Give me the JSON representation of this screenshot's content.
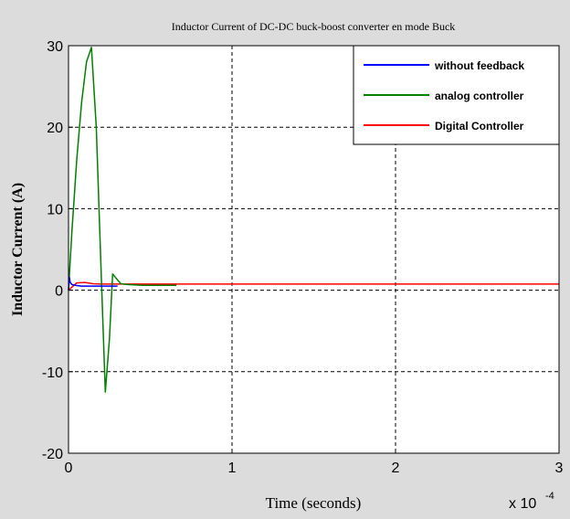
{
  "chart_data": {
    "type": "line",
    "title": "Inductor Current of DC-DC buck-boost converter en mode Buck",
    "xlabel": "Time (seconds)",
    "ylabel": "Inductor Current (A)",
    "x_multiplier": "x 10",
    "x_multiplier_exponent": "-4",
    "xlim": [
      0,
      3
    ],
    "ylim": [
      -20,
      30
    ],
    "x_ticks": [
      0,
      1,
      2,
      3
    ],
    "y_ticks": [
      -20,
      -10,
      0,
      10,
      20,
      30
    ],
    "grid": true,
    "legend_position": "top-right",
    "series": [
      {
        "name": "without feedback",
        "color": "#0000ff",
        "x": [
          0,
          0.005,
          0.01,
          0.02,
          0.04,
          0.08,
          0.12,
          0.2,
          0.3
        ],
        "y": [
          0,
          1.6,
          1.0,
          0.7,
          0.6,
          0.5,
          0.5,
          0.5,
          0.5
        ]
      },
      {
        "name": "analog controller",
        "color": "#008000",
        "x": [
          0,
          0.02,
          0.05,
          0.08,
          0.11,
          0.14,
          0.17,
          0.2,
          0.225,
          0.25,
          0.27,
          0.29,
          0.32,
          0.36,
          0.45,
          0.55,
          0.66
        ],
        "y": [
          0,
          7,
          16,
          23,
          28,
          29.8,
          20,
          2,
          -12.5,
          -6,
          2,
          1.5,
          0.8,
          0.7,
          0.6,
          0.6,
          0.6
        ]
      },
      {
        "name": "Digital Controller",
        "color": "#ff0000",
        "x": [
          0,
          0.05,
          0.1,
          0.15,
          0.2,
          0.3,
          0.5,
          1,
          2,
          3
        ],
        "y": [
          0,
          0.9,
          0.95,
          0.8,
          0.75,
          0.75,
          0.75,
          0.75,
          0.75,
          0.75
        ]
      }
    ]
  }
}
